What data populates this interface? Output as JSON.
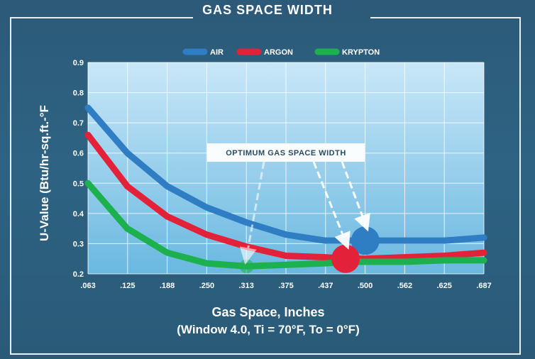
{
  "chart_data": {
    "type": "line",
    "title": "GAS SPACE WIDTH",
    "xlabel": "Gas Space, Inches",
    "xlabel_sub": "(Window 4.0, Ti = 70°F, To = 0°F)",
    "ylabel": "U-Value (Btu/hr-sq.ft.-°F",
    "x_tick_labels": [
      ".063",
      ".125",
      ".188",
      ".250",
      ".313",
      ".375",
      ".437",
      ".500",
      ".562",
      ".625",
      ".687"
    ],
    "y_tick_labels": [
      "0.9",
      "0.8",
      "0.7",
      "0.6",
      "0.5",
      "0.4",
      "0.3",
      "0.2"
    ],
    "ylim": [
      0.2,
      0.9
    ],
    "xlim": [
      0.063,
      0.687
    ],
    "grid": true,
    "legend_position": "top-center",
    "series": [
      {
        "name": "AIR",
        "color": "#2f7ec4",
        "x": [
          0.063,
          0.125,
          0.188,
          0.25,
          0.313,
          0.375,
          0.437,
          0.469,
          0.5,
          0.562,
          0.625,
          0.687
        ],
        "values": [
          0.75,
          0.6,
          0.49,
          0.42,
          0.37,
          0.33,
          0.31,
          0.31,
          0.31,
          0.31,
          0.31,
          0.32
        ]
      },
      {
        "name": "ARGON",
        "color": "#e3223a",
        "x": [
          0.063,
          0.125,
          0.188,
          0.25,
          0.313,
          0.375,
          0.437,
          0.469,
          0.5,
          0.562,
          0.625,
          0.687
        ],
        "values": [
          0.66,
          0.49,
          0.39,
          0.33,
          0.29,
          0.26,
          0.255,
          0.25,
          0.25,
          0.255,
          0.26,
          0.27
        ]
      },
      {
        "name": "KRYPTON",
        "color": "#1db04f",
        "x": [
          0.063,
          0.125,
          0.188,
          0.25,
          0.313,
          0.375,
          0.437,
          0.469,
          0.5,
          0.562,
          0.625,
          0.687
        ],
        "values": [
          0.5,
          0.35,
          0.27,
          0.235,
          0.225,
          0.23,
          0.235,
          0.24,
          0.24,
          0.24,
          0.245,
          0.245
        ]
      }
    ],
    "annotation": {
      "text": "OPTIMUM GAS SPACE WIDTH",
      "optimum_points": [
        {
          "series": "AIR",
          "x": 0.5,
          "y": 0.31
        },
        {
          "series": "ARGON",
          "x": 0.469,
          "y": 0.25
        },
        {
          "series": "KRYPTON",
          "x": 0.313,
          "y": 0.225
        }
      ]
    }
  }
}
